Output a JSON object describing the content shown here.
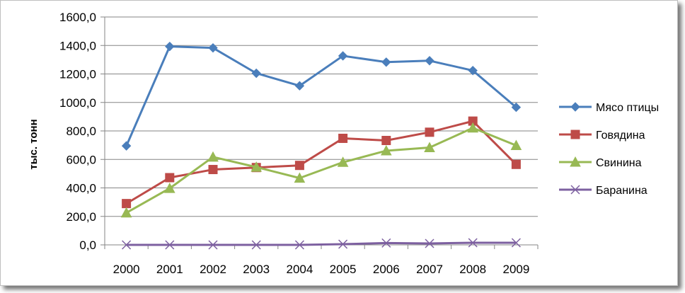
{
  "chart_data": {
    "type": "line",
    "title": "",
    "xlabel": "",
    "ylabel": "тыс. тонн",
    "categories": [
      "2000",
      "2001",
      "2002",
      "2003",
      "2004",
      "2005",
      "2006",
      "2007",
      "2008",
      "2009"
    ],
    "y_ticks": [
      "0,0",
      "200,0",
      "400,0",
      "600,0",
      "800,0",
      "1000,0",
      "1200,0",
      "1400,0",
      "1600,0"
    ],
    "ylim": [
      0,
      1600
    ],
    "grid": "horizontal",
    "legend_position": "right",
    "series": [
      {
        "name": "Мясо птицы",
        "color": "#4a7ebb",
        "marker": "diamond",
        "values": [
          695,
          1393,
          1383,
          1205,
          1117,
          1327,
          1283,
          1293,
          1224,
          966
        ]
      },
      {
        "name": "Говядина",
        "color": "#be4b48",
        "marker": "square",
        "values": [
          290,
          472,
          529,
          543,
          558,
          748,
          733,
          791,
          869,
          565
        ]
      },
      {
        "name": "Свинина",
        "color": "#98b954",
        "marker": "triangle",
        "values": [
          225,
          397,
          617,
          546,
          469,
          580,
          661,
          683,
          821,
          698
        ]
      },
      {
        "name": "Баранина",
        "color": "#7d60a0",
        "marker": "x",
        "values": [
          0,
          0,
          0,
          0,
          0,
          5,
          13,
          10,
          15,
          15
        ]
      }
    ]
  }
}
